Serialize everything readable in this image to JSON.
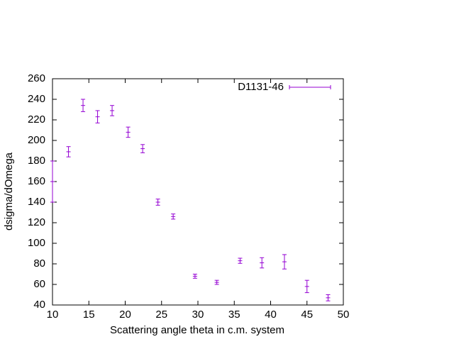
{
  "chart_data": {
    "type": "errorbar",
    "xlabel": "Scattering angle theta in c.m. system",
    "ylabel": "dsigma/dOmega",
    "xlim": [
      10,
      50
    ],
    "xticks": [
      10,
      15,
      20,
      25,
      30,
      35,
      40,
      45,
      50
    ],
    "ylim": [
      40,
      260
    ],
    "yticks": [
      40,
      60,
      80,
      100,
      120,
      140,
      160,
      180,
      200,
      220,
      240,
      260
    ],
    "legend": "top-right",
    "series": [
      {
        "name": "D1131-46",
        "color": "#9400d3",
        "x": [
          10.0,
          12.2,
          14.2,
          16.2,
          18.2,
          20.4,
          22.4,
          24.5,
          26.6,
          29.6,
          32.6,
          35.8,
          38.8,
          41.9,
          45.0,
          47.9
        ],
        "values": [
          160,
          189,
          234,
          223,
          229,
          208,
          192,
          140,
          126,
          68,
          62,
          83,
          81,
          82,
          58,
          47
        ],
        "errors": [
          20,
          5,
          6,
          6,
          5,
          5,
          4,
          3,
          2.5,
          2,
          2,
          2.5,
          5,
          7,
          6,
          3
        ]
      }
    ]
  }
}
